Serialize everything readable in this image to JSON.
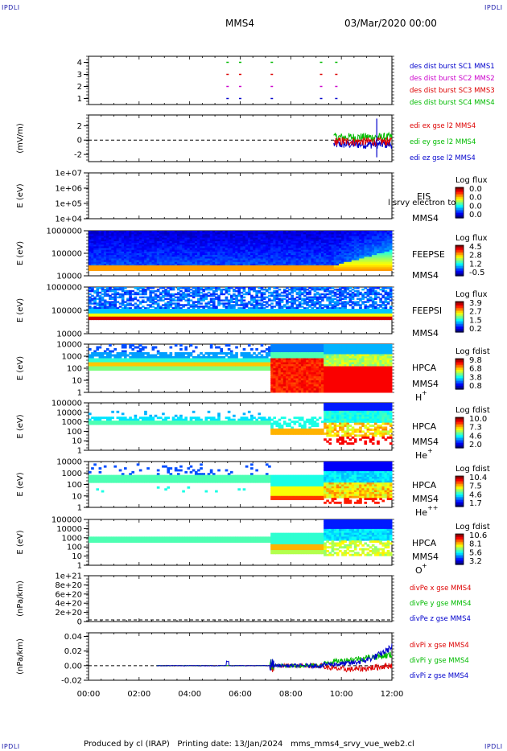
{
  "corner_label": "IPDLI",
  "header": {
    "spacecraft": "MMS4",
    "date": "03/Mar/2020 00:00"
  },
  "footer": {
    "produced_by": "Produced by cl (IRAP)",
    "printing_date": "Printing date: 13/Jan/2024",
    "script": "mms_mms4_srvy_vue_web2.cl"
  },
  "chart_data": [
    {
      "id": "panel-burst",
      "type": "scatter",
      "ylim": [
        0.5,
        4.5
      ],
      "yticks": [
        "1",
        "2",
        "3",
        "4"
      ],
      "legend": [
        {
          "text": "des dist burst SC1 MMS1",
          "color": "#0000cc"
        },
        {
          "text": "des dist burst SC2 MMS2",
          "color": "#cc00cc"
        },
        {
          "text": "des dist burst SC3 MMS3",
          "color": "#dd0000"
        },
        {
          "text": "des dist burst SC4 MMS4",
          "color": "#00bb00"
        }
      ],
      "burst_times_hours": [
        5.5,
        6.0,
        7.25,
        9.2,
        9.8
      ],
      "series": [
        {
          "name": "SC1",
          "level": 1,
          "color": "#0000cc"
        },
        {
          "name": "SC2",
          "level": 2,
          "color": "#cc00cc"
        },
        {
          "name": "SC3",
          "level": 3,
          "color": "#dd0000"
        },
        {
          "name": "SC4",
          "level": 4,
          "color": "#00bb00"
        }
      ]
    },
    {
      "id": "panel-edi",
      "type": "line",
      "ylabel": "(mV/m)",
      "ylim": [
        -3,
        3.5
      ],
      "yticks": [
        "2",
        "0",
        "-2"
      ],
      "legend": [
        {
          "text": "edi ex gse l2 MMS4",
          "color": "#dd0000"
        },
        {
          "text": "edi ey gse l2 MMS4",
          "color": "#00bb00"
        },
        {
          "text": "edi ez gse l2 MMS4",
          "color": "#0000cc"
        }
      ],
      "data_start_hours": 9.7,
      "spike": {
        "time_hours": 11.4,
        "max": 3.0,
        "min": -2.4
      }
    },
    {
      "id": "panel-eis",
      "type": "heatmap",
      "ylabel": "E (eV)",
      "yticks": [
        "1e+07",
        "1e+06",
        "1e+05",
        "1e+04"
      ],
      "labels": [
        "EIS",
        "MMS4"
      ],
      "overlay_text": "l srvy electron to",
      "colorbar": {
        "title": "Log flux",
        "ticks": [
          "0.0",
          "0.0",
          "0.0",
          "0.0"
        ]
      }
    },
    {
      "id": "panel-feepse",
      "type": "heatmap",
      "ylabel": "E (eV)",
      "yticks": [
        "1000000",
        "100000",
        "10000"
      ],
      "labels": [
        "FEEPSE",
        "MMS4"
      ],
      "colorbar": {
        "title": "Log flux",
        "ticks": [
          "4.5",
          "2.8",
          "1.2",
          "-0.5"
        ]
      }
    },
    {
      "id": "panel-feepsi",
      "type": "heatmap",
      "ylabel": "E (eV)",
      "yticks": [
        "1000000",
        "100000",
        "10000"
      ],
      "labels": [
        "FEEPSI",
        "MMS4"
      ],
      "colorbar": {
        "title": "Log flux",
        "ticks": [
          "3.9",
          "2.7",
          "1.5",
          "0.2"
        ]
      }
    },
    {
      "id": "panel-hpca-h",
      "type": "heatmap",
      "ylabel": "E (eV)",
      "yticks": [
        "10000",
        "1000",
        "100",
        "10",
        "1"
      ],
      "labels": [
        "HPCA",
        "MMS4"
      ],
      "species": "H",
      "charge": "+",
      "colorbar": {
        "title": "Log fdist",
        "ticks": [
          "9.8",
          "6.8",
          "3.8",
          "0.8"
        ]
      }
    },
    {
      "id": "panel-hpca-he1",
      "type": "heatmap",
      "ylabel": "E (eV)",
      "yticks": [
        "100000",
        "10000",
        "1000",
        "100",
        "10",
        "1"
      ],
      "labels": [
        "HPCA",
        "MMS4"
      ],
      "species": "He",
      "charge": "+",
      "colorbar": {
        "title": "Log fdist",
        "ticks": [
          "10.0",
          "7.3",
          "4.6",
          "2.0"
        ]
      }
    },
    {
      "id": "panel-hpca-he2",
      "type": "heatmap",
      "ylabel": "E (eV)",
      "yticks": [
        "10000",
        "1000",
        "100",
        "10",
        "1"
      ],
      "labels": [
        "HPCA",
        "MMS4"
      ],
      "species": "He",
      "charge": "++",
      "colorbar": {
        "title": "Log fdist",
        "ticks": [
          "10.4",
          "7.5",
          "4.6",
          "1.7"
        ]
      }
    },
    {
      "id": "panel-hpca-o",
      "type": "heatmap",
      "ylabel": "E (eV)",
      "yticks": [
        "100000",
        "10000",
        "1000",
        "100",
        "10",
        "1"
      ],
      "labels": [
        "HPCA",
        "MMS4"
      ],
      "species": "O",
      "charge": "+",
      "colorbar": {
        "title": "Log fdist",
        "ticks": [
          "10.6",
          "8.1",
          "5.6",
          "3.2"
        ]
      }
    },
    {
      "id": "panel-divpe",
      "type": "line",
      "ylabel": "(nPa/km)",
      "yticks": [
        "1e+21",
        "8e+20",
        "6e+20",
        "4e+20",
        "2e+20",
        "0"
      ],
      "legend": [
        {
          "text": "divPe x gse MMS4",
          "color": "#dd0000"
        },
        {
          "text": "divPe y gse MMS4",
          "color": "#00bb00"
        },
        {
          "text": "divPe z gse MMS4",
          "color": "#0000cc"
        }
      ]
    },
    {
      "id": "panel-divpi",
      "type": "line",
      "ylabel": "(nPa/km)",
      "ylim": [
        -0.02,
        0.045
      ],
      "yticks": [
        "0.04",
        "0.02",
        "0.00",
        "-0.02"
      ],
      "legend": [
        {
          "text": "divPi x gse MMS4",
          "color": "#dd0000"
        },
        {
          "text": "divPi y gse MMS4",
          "color": "#00bb00"
        },
        {
          "text": "divPi z gse MMS4",
          "color": "#0000cc"
        }
      ]
    }
  ],
  "x_axis": {
    "ticks": [
      "00:00",
      "02:00",
      "04:00",
      "06:00",
      "08:00",
      "10:00",
      "12:00"
    ],
    "range_hours": [
      0,
      12
    ]
  }
}
